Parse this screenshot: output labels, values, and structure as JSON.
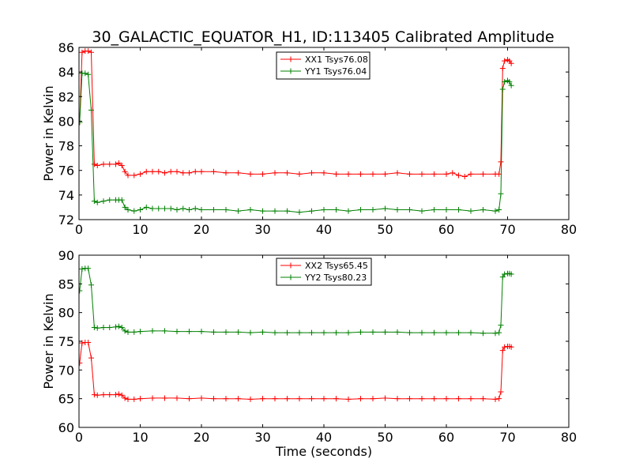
{
  "chart_data": [
    {
      "type": "line",
      "title": "30_GALACTIC_EQUATOR_H1, ID:113405 Calibrated Amplitude",
      "xlabel": "",
      "ylabel": "Power in Kelvin",
      "xlim": [
        0,
        80
      ],
      "ylim": [
        72,
        86
      ],
      "xticks": [
        0,
        10,
        20,
        30,
        40,
        50,
        60,
        70,
        80
      ],
      "yticks": [
        72,
        74,
        76,
        78,
        80,
        82,
        84,
        86
      ],
      "grid": false,
      "legend_position": "top-center",
      "series": [
        {
          "name": "XX1 Tsys76.08",
          "color": "#ff0000",
          "marker": "+",
          "points": [
            [
              0.1,
              79.9
            ],
            [
              0.5,
              85.6
            ],
            [
              1,
              85.7
            ],
            [
              1.5,
              85.7
            ],
            [
              2,
              85.6
            ],
            [
              2.5,
              76.5
            ],
            [
              3,
              76.4
            ],
            [
              4,
              76.5
            ],
            [
              5,
              76.5
            ],
            [
              6,
              76.5
            ],
            [
              6.5,
              76.6
            ],
            [
              7,
              76.4
            ],
            [
              7.5,
              75.9
            ],
            [
              8,
              75.6
            ],
            [
              9,
              75.6
            ],
            [
              10,
              75.7
            ],
            [
              11,
              75.9
            ],
            [
              12,
              75.9
            ],
            [
              13,
              75.9
            ],
            [
              14,
              75.8
            ],
            [
              15,
              75.9
            ],
            [
              16,
              75.9
            ],
            [
              17,
              75.8
            ],
            [
              18,
              75.8
            ],
            [
              19,
              75.9
            ],
            [
              20,
              75.9
            ],
            [
              22,
              75.9
            ],
            [
              24,
              75.8
            ],
            [
              26,
              75.8
            ],
            [
              28,
              75.7
            ],
            [
              30,
              75.7
            ],
            [
              32,
              75.8
            ],
            [
              34,
              75.8
            ],
            [
              36,
              75.7
            ],
            [
              38,
              75.8
            ],
            [
              40,
              75.8
            ],
            [
              42,
              75.7
            ],
            [
              44,
              75.7
            ],
            [
              46,
              75.7
            ],
            [
              48,
              75.7
            ],
            [
              50,
              75.7
            ],
            [
              52,
              75.8
            ],
            [
              54,
              75.7
            ],
            [
              56,
              75.7
            ],
            [
              58,
              75.7
            ],
            [
              60,
              75.7
            ],
            [
              61,
              75.8
            ],
            [
              62,
              75.6
            ],
            [
              63,
              75.5
            ],
            [
              64,
              75.7
            ],
            [
              66,
              75.7
            ],
            [
              68,
              75.7
            ],
            [
              68.6,
              75.7
            ],
            [
              68.9,
              76.7
            ],
            [
              69.2,
              84.3
            ],
            [
              69.5,
              84.9
            ],
            [
              70,
              85.0
            ],
            [
              70.3,
              84.9
            ],
            [
              70.6,
              84.7
            ]
          ]
        },
        {
          "name": "YY1 Tsys76.04",
          "color": "#008000",
          "marker": "+",
          "points": [
            [
              0.1,
              79.9
            ],
            [
              0.5,
              83.9
            ],
            [
              1,
              83.9
            ],
            [
              1.5,
              83.8
            ],
            [
              2,
              80.9
            ],
            [
              2.5,
              73.5
            ],
            [
              3,
              73.4
            ],
            [
              4,
              73.5
            ],
            [
              5,
              73.6
            ],
            [
              6,
              73.6
            ],
            [
              6.5,
              73.6
            ],
            [
              7,
              73.6
            ],
            [
              7.5,
              73.0
            ],
            [
              8,
              72.8
            ],
            [
              9,
              72.7
            ],
            [
              10,
              72.8
            ],
            [
              11,
              73.0
            ],
            [
              12,
              72.9
            ],
            [
              13,
              72.9
            ],
            [
              14,
              72.9
            ],
            [
              15,
              72.9
            ],
            [
              16,
              72.8
            ],
            [
              17,
              72.9
            ],
            [
              18,
              72.8
            ],
            [
              19,
              72.9
            ],
            [
              20,
              72.8
            ],
            [
              22,
              72.8
            ],
            [
              24,
              72.8
            ],
            [
              26,
              72.7
            ],
            [
              28,
              72.8
            ],
            [
              30,
              72.7
            ],
            [
              32,
              72.7
            ],
            [
              34,
              72.7
            ],
            [
              36,
              72.6
            ],
            [
              38,
              72.7
            ],
            [
              40,
              72.8
            ],
            [
              42,
              72.8
            ],
            [
              44,
              72.7
            ],
            [
              46,
              72.8
            ],
            [
              48,
              72.8
            ],
            [
              50,
              72.9
            ],
            [
              52,
              72.8
            ],
            [
              54,
              72.8
            ],
            [
              56,
              72.7
            ],
            [
              58,
              72.8
            ],
            [
              60,
              72.8
            ],
            [
              62,
              72.8
            ],
            [
              64,
              72.7
            ],
            [
              66,
              72.8
            ],
            [
              68,
              72.7
            ],
            [
              68.6,
              72.8
            ],
            [
              68.9,
              74.1
            ],
            [
              69.2,
              82.6
            ],
            [
              69.5,
              83.2
            ],
            [
              70,
              83.3
            ],
            [
              70.3,
              83.2
            ],
            [
              70.6,
              82.9
            ]
          ]
        }
      ]
    },
    {
      "type": "line",
      "title": "",
      "xlabel": "Time (seconds)",
      "ylabel": "Power in Kelvin",
      "xlim": [
        0,
        80
      ],
      "ylim": [
        60,
        90
      ],
      "xticks": [
        0,
        10,
        20,
        30,
        40,
        50,
        60,
        70,
        80
      ],
      "yticks": [
        60,
        65,
        70,
        75,
        80,
        85,
        90
      ],
      "grid": false,
      "legend_position": "top-center",
      "series": [
        {
          "name": "XX2 Tsys65.45",
          "color": "#ff0000",
          "marker": "+",
          "points": [
            [
              0.1,
              71.2
            ],
            [
              0.5,
              74.7
            ],
            [
              1,
              74.8
            ],
            [
              1.5,
              74.8
            ],
            [
              2,
              72.1
            ],
            [
              2.5,
              65.7
            ],
            [
              3,
              65.6
            ],
            [
              4,
              65.7
            ],
            [
              5,
              65.7
            ],
            [
              6,
              65.7
            ],
            [
              6.5,
              65.8
            ],
            [
              7,
              65.6
            ],
            [
              7.5,
              65.1
            ],
            [
              8,
              64.9
            ],
            [
              9,
              64.9
            ],
            [
              10,
              65.0
            ],
            [
              12,
              65.1
            ],
            [
              14,
              65.1
            ],
            [
              16,
              65.1
            ],
            [
              18,
              65.0
            ],
            [
              20,
              65.1
            ],
            [
              22,
              65.0
            ],
            [
              24,
              65.0
            ],
            [
              26,
              65.0
            ],
            [
              28,
              64.9
            ],
            [
              30,
              65.0
            ],
            [
              32,
              65.0
            ],
            [
              34,
              65.0
            ],
            [
              36,
              65.0
            ],
            [
              38,
              65.0
            ],
            [
              40,
              65.0
            ],
            [
              42,
              65.0
            ],
            [
              44,
              64.9
            ],
            [
              46,
              65.0
            ],
            [
              48,
              65.0
            ],
            [
              50,
              65.1
            ],
            [
              52,
              65.0
            ],
            [
              54,
              65.0
            ],
            [
              56,
              65.0
            ],
            [
              58,
              65.0
            ],
            [
              60,
              65.0
            ],
            [
              62,
              65.0
            ],
            [
              64,
              65.0
            ],
            [
              66,
              65.0
            ],
            [
              68,
              64.9
            ],
            [
              68.6,
              65.0
            ],
            [
              68.9,
              66.2
            ],
            [
              69.2,
              73.4
            ],
            [
              69.5,
              74.0
            ],
            [
              70,
              74.1
            ],
            [
              70.3,
              74.1
            ],
            [
              70.6,
              74.0
            ]
          ]
        },
        {
          "name": "YY2 Tsys80.23",
          "color": "#008000",
          "marker": "+",
          "points": [
            [
              0.1,
              83.8
            ],
            [
              0.5,
              87.6
            ],
            [
              1,
              87.7
            ],
            [
              1.5,
              87.7
            ],
            [
              2,
              84.8
            ],
            [
              2.5,
              77.4
            ],
            [
              3,
              77.3
            ],
            [
              4,
              77.4
            ],
            [
              5,
              77.4
            ],
            [
              6,
              77.5
            ],
            [
              6.5,
              77.6
            ],
            [
              7,
              77.4
            ],
            [
              7.5,
              76.8
            ],
            [
              8,
              76.6
            ],
            [
              9,
              76.6
            ],
            [
              10,
              76.7
            ],
            [
              12,
              76.8
            ],
            [
              14,
              76.8
            ],
            [
              16,
              76.7
            ],
            [
              18,
              76.7
            ],
            [
              20,
              76.7
            ],
            [
              22,
              76.6
            ],
            [
              24,
              76.6
            ],
            [
              26,
              76.6
            ],
            [
              28,
              76.5
            ],
            [
              30,
              76.6
            ],
            [
              32,
              76.5
            ],
            [
              34,
              76.5
            ],
            [
              36,
              76.5
            ],
            [
              38,
              76.5
            ],
            [
              40,
              76.5
            ],
            [
              42,
              76.5
            ],
            [
              44,
              76.5
            ],
            [
              46,
              76.6
            ],
            [
              48,
              76.6
            ],
            [
              50,
              76.6
            ],
            [
              52,
              76.6
            ],
            [
              54,
              76.5
            ],
            [
              56,
              76.5
            ],
            [
              58,
              76.5
            ],
            [
              60,
              76.5
            ],
            [
              62,
              76.5
            ],
            [
              64,
              76.5
            ],
            [
              66,
              76.4
            ],
            [
              68,
              76.4
            ],
            [
              68.6,
              76.5
            ],
            [
              68.9,
              77.8
            ],
            [
              69.2,
              86.2
            ],
            [
              69.5,
              86.7
            ],
            [
              70,
              86.8
            ],
            [
              70.3,
              86.8
            ],
            [
              70.6,
              86.7
            ]
          ]
        }
      ]
    }
  ]
}
